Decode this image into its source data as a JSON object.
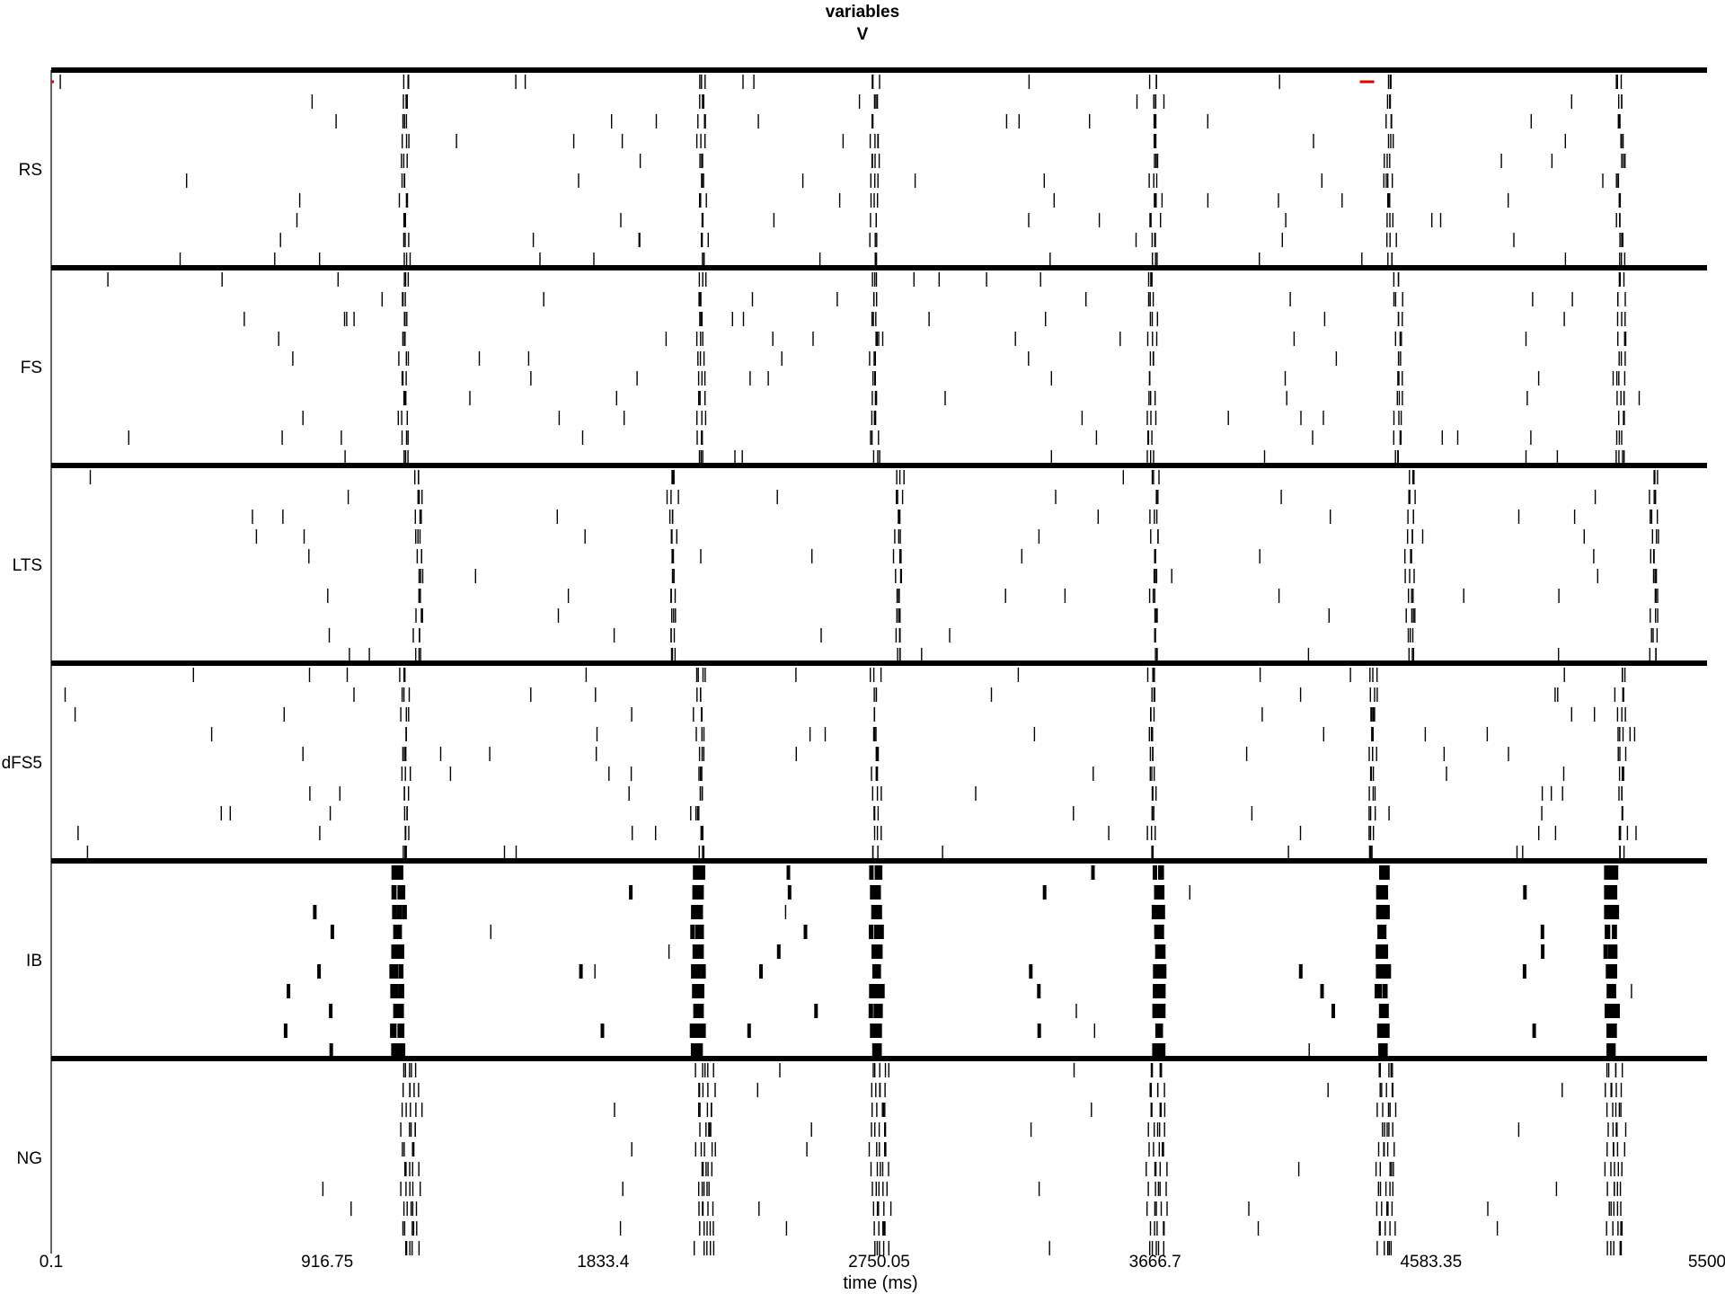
{
  "chart_data": {
    "type": "raster",
    "title": "variables",
    "subtitle": "V",
    "xlabel": "time (ms)",
    "xlim": [
      0.1,
      5500
    ],
    "xticks": [
      0.1,
      916.75,
      1833.4,
      2750.05,
      3666.7,
      4583.35,
      5500
    ],
    "xtick_labels": [
      "0.1",
      "916.75",
      "1833.4",
      "2750.05",
      "3666.7",
      "4583.35",
      "5500"
    ],
    "grid": false,
    "legend": "none",
    "spike_color": "#000000",
    "marker_color": "#e00000",
    "population_order": [
      "RS",
      "FS",
      "LTS",
      "dFS5",
      "IB",
      "NG"
    ],
    "populations": [
      {
        "name": "RS",
        "bursts_ms": [
          1170,
          2155,
          2730,
          3660,
          4440,
          5205
        ],
        "background_spikes_per_row": 4
      },
      {
        "name": "FS",
        "bursts_ms": [
          1170,
          2150,
          2730,
          3650,
          4470,
          5210
        ],
        "background_spikes_per_row": 5
      },
      {
        "name": "LTS",
        "bursts_ms": [
          1215,
          2060,
          2810,
          3660,
          4510,
          5320
        ],
        "background_spikes_per_row": 2
      },
      {
        "name": "dFS5",
        "bursts_ms": [
          1170,
          2150,
          2730,
          3650,
          4380,
          5210
        ],
        "background_spikes_per_row": 5
      },
      {
        "name": "IB",
        "bursts_ms": [
          1140,
          2135,
          2730,
          3670,
          4410,
          5170
        ],
        "background_spikes_per_row": 1
      },
      {
        "name": "NG",
        "bursts_ms": [
          1170,
          2150,
          2730,
          3650,
          4410,
          5170
        ],
        "background_spikes_per_row": 0
      }
    ],
    "markers": [
      {
        "population": "RS",
        "x_ms": 0.1
      },
      {
        "population": "RS",
        "x_ms": 4347
      }
    ]
  }
}
